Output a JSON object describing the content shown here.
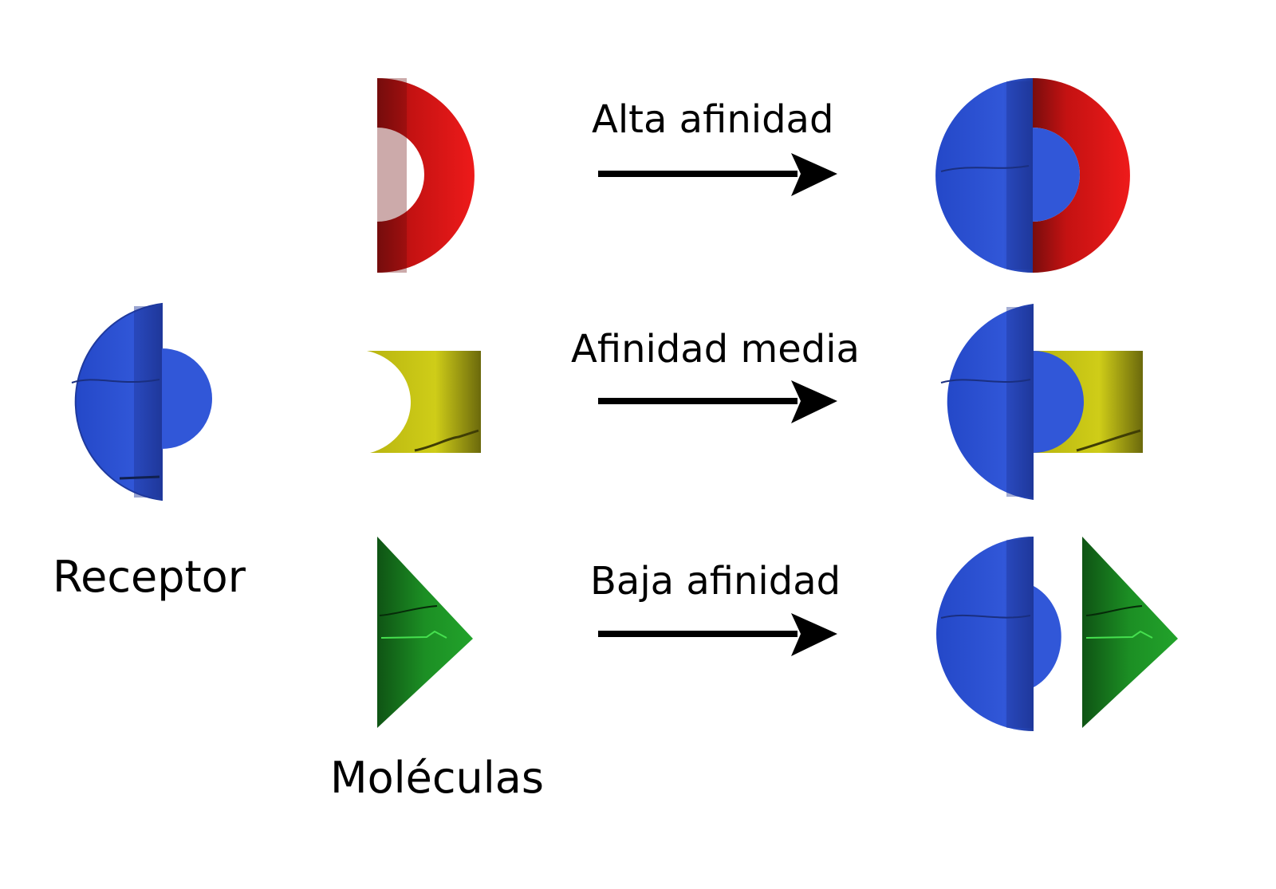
{
  "labels": {
    "receptor": "Receptor",
    "molecules": "Moléculas",
    "high_affinity": "Alta afinidad",
    "medium_affinity": "Afinidad media",
    "low_affinity": "Baja afinidad"
  },
  "colors": {
    "receptor": "#2f52d6",
    "receptor_dark": "#1f3596",
    "high_molecule": "#e01515",
    "high_molecule_dark": "#7a0d0d",
    "medium_molecule": "#c9c814",
    "medium_molecule_dark": "#5c5a0a",
    "low_molecule": "#1e9a26",
    "low_molecule_dark": "#0d4d12",
    "arrow": "#000000"
  },
  "icons": {
    "receptor": "receptor-shape",
    "high_molecule": "red-crescent",
    "medium_molecule": "yellow-notched-block",
    "low_molecule": "green-triangle",
    "arrow": "right-arrow"
  }
}
